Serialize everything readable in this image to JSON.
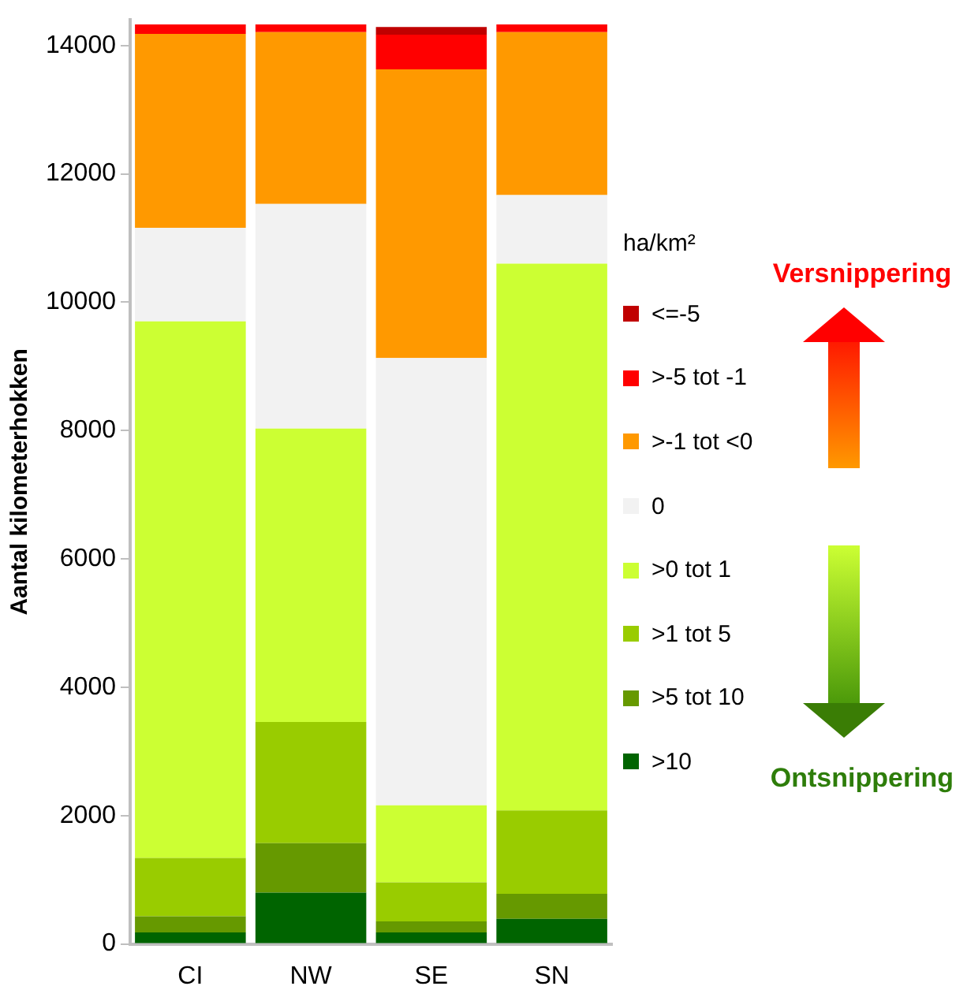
{
  "chart_data": {
    "type": "bar",
    "stacked": true,
    "ylabel": "Aantal kilometerhokken",
    "legend_title": "ha/km²",
    "categories": [
      "CI",
      "NW",
      "SE",
      "SN"
    ],
    "series": [
      {
        "name": ">10",
        "color": "#006400",
        "values": [
          180,
          800,
          180,
          390
        ]
      },
      {
        "name": ">5 tot 10",
        "color": "#669900",
        "values": [
          250,
          770,
          170,
          390
        ]
      },
      {
        "name": ">1 tot 5",
        "color": "#99cc00",
        "values": [
          910,
          1890,
          610,
          1300
        ]
      },
      {
        "name": ">0 tot 1",
        "color": "#ccff33",
        "values": [
          8360,
          4570,
          1200,
          8520
        ]
      },
      {
        "name": "0",
        "color": "#f2f2f2",
        "values": [
          1460,
          3500,
          6970,
          1070
        ]
      },
      {
        "name": ">-1 tot <0",
        "color": "#ff9900",
        "values": [
          3020,
          2680,
          4500,
          2540
        ]
      },
      {
        "name": ">-5 tot -1",
        "color": "#ff0000",
        "values": [
          150,
          120,
          540,
          120
        ]
      },
      {
        "name": "<=-5",
        "color": "#c00000",
        "values": [
          0,
          0,
          120,
          0
        ]
      }
    ],
    "ylim": [
      0,
      14400
    ],
    "yticks": [
      0,
      2000,
      4000,
      6000,
      8000,
      10000,
      12000,
      14000
    ],
    "grid": false,
    "legend": "right",
    "annotations": [
      "Versnippering",
      "Ontsnippering"
    ]
  }
}
